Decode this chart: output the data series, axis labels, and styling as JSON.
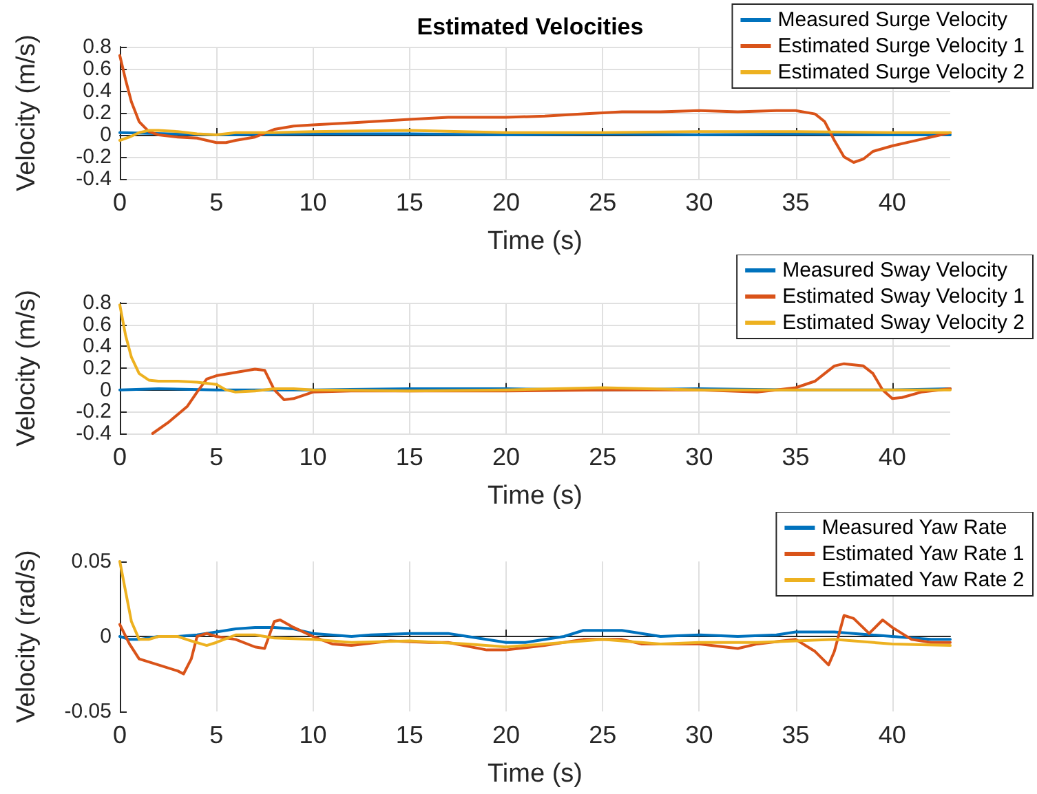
{
  "chart_data": [
    {
      "type": "line",
      "title": "Estimated Velocities",
      "xlabel": "Time (s)",
      "ylabel": "Velocity (m/s)",
      "xlim": [
        0,
        43
      ],
      "xticks": [
        0,
        5,
        10,
        15,
        20,
        25,
        30,
        35,
        40
      ],
      "ylim": [
        -0.4,
        0.8
      ],
      "yticks": [
        -0.4,
        -0.2,
        0,
        0.2,
        0.4,
        0.6,
        0.8
      ],
      "grid": true,
      "legend": "top right",
      "marker": "none",
      "line_style": "solid",
      "series": [
        {
          "name": "Measured Surge Velocity",
          "color": "#0072bd",
          "x": [
            0,
            5,
            10,
            15,
            20,
            25,
            30,
            35,
            40,
            43
          ],
          "values": [
            0.02,
            0.0,
            0.01,
            0.01,
            0.0,
            0.01,
            0.0,
            0.01,
            0.0,
            0.0
          ]
        },
        {
          "name": "Estimated Surge Velocity 1",
          "color": "#d95319",
          "x": [
            0,
            0.3,
            0.6,
            1,
            1.5,
            2,
            3,
            4,
            5,
            5.5,
            6,
            7,
            8,
            9,
            10,
            12,
            15,
            17,
            18,
            20,
            22,
            24,
            26,
            28,
            30,
            32,
            34,
            35,
            36,
            36.5,
            37,
            37.5,
            38,
            38.5,
            39,
            40,
            41,
            42,
            43
          ],
          "values": [
            0.72,
            0.5,
            0.3,
            0.12,
            0.03,
            0.0,
            -0.02,
            -0.03,
            -0.07,
            -0.07,
            -0.05,
            -0.02,
            0.05,
            0.08,
            0.09,
            0.11,
            0.14,
            0.16,
            0.16,
            0.16,
            0.17,
            0.19,
            0.21,
            0.21,
            0.22,
            0.21,
            0.22,
            0.22,
            0.19,
            0.12,
            -0.05,
            -0.2,
            -0.25,
            -0.22,
            -0.15,
            -0.1,
            -0.06,
            -0.02,
            0.02
          ]
        },
        {
          "name": "Estimated Surge Velocity 2",
          "color": "#edb120",
          "x": [
            0,
            0.5,
            1,
            1.5,
            2,
            3,
            4,
            5,
            6,
            8,
            10,
            15,
            20,
            25,
            30,
            35,
            40,
            43
          ],
          "values": [
            -0.05,
            -0.02,
            0.02,
            0.04,
            0.04,
            0.03,
            0.01,
            0.0,
            0.02,
            0.02,
            0.03,
            0.04,
            0.02,
            0.02,
            0.03,
            0.03,
            0.02,
            0.02
          ]
        }
      ]
    },
    {
      "type": "line",
      "xlabel": "Time (s)",
      "ylabel": "Velocity (m/s)",
      "xlim": [
        0,
        43
      ],
      "xticks": [
        0,
        5,
        10,
        15,
        20,
        25,
        30,
        35,
        40
      ],
      "ylim": [
        -0.4,
        0.8
      ],
      "yticks": [
        -0.4,
        -0.2,
        0,
        0.2,
        0.4,
        0.6,
        0.8
      ],
      "grid": true,
      "legend": "top right",
      "marker": "none",
      "line_style": "solid",
      "series": [
        {
          "name": "Measured Sway Velocity",
          "color": "#0072bd",
          "x": [
            0,
            2,
            5,
            10,
            15,
            20,
            25,
            30,
            35,
            40,
            43
          ],
          "values": [
            0.0,
            0.01,
            0.0,
            0.0,
            0.01,
            0.01,
            0.0,
            0.01,
            0.0,
            0.0,
            0.01
          ]
        },
        {
          "name": "Estimated Sway Velocity 1",
          "color": "#d95319",
          "x": [
            1.7,
            2.5,
            3.5,
            4,
            4.5,
            5,
            6,
            7,
            7.5,
            8,
            8.5,
            9,
            10,
            12,
            15,
            20,
            25,
            30,
            33,
            34,
            35,
            36,
            36.5,
            37,
            37.5,
            38.5,
            39,
            39.5,
            40,
            40.5,
            41.5,
            43
          ],
          "values": [
            -0.4,
            -0.3,
            -0.15,
            -0.02,
            0.1,
            0.13,
            0.16,
            0.19,
            0.18,
            0.0,
            -0.09,
            -0.08,
            -0.02,
            -0.01,
            -0.01,
            -0.01,
            0.0,
            0.0,
            -0.02,
            0.0,
            0.02,
            0.08,
            0.15,
            0.22,
            0.24,
            0.22,
            0.15,
            0.0,
            -0.08,
            -0.07,
            -0.02,
            0.01
          ]
        },
        {
          "name": "Estimated Sway Velocity 2",
          "color": "#edb120",
          "x": [
            0,
            0.3,
            0.6,
            1,
            1.5,
            2,
            3,
            4,
            5,
            5.5,
            6,
            7,
            8,
            9,
            10,
            15,
            20,
            25,
            30,
            35,
            40,
            43
          ],
          "values": [
            0.78,
            0.5,
            0.3,
            0.15,
            0.09,
            0.08,
            0.08,
            0.07,
            0.05,
            0.0,
            -0.02,
            -0.01,
            0.01,
            0.01,
            0.0,
            -0.01,
            0.0,
            0.02,
            0.0,
            0.0,
            0.0,
            0.0
          ]
        }
      ]
    },
    {
      "type": "line",
      "xlabel": "Time (s)",
      "ylabel": "Velocity (rad/s)",
      "xlim": [
        0,
        43
      ],
      "xticks": [
        0,
        5,
        10,
        15,
        20,
        25,
        30,
        35,
        40
      ],
      "ylim": [
        -0.05,
        0.05
      ],
      "yticks": [
        -0.05,
        0,
        0.05
      ],
      "grid": "x",
      "legend": "top right",
      "marker": "none",
      "line_style": "solid",
      "series": [
        {
          "name": "Measured Yaw Rate",
          "color": "#0072bd",
          "x": [
            0,
            0.5,
            1,
            2,
            3,
            4,
            5,
            6,
            7,
            8,
            9,
            10,
            12,
            13,
            15,
            17,
            18,
            20,
            21,
            23,
            24,
            26,
            28,
            30,
            32,
            34,
            35,
            37,
            38,
            40,
            42,
            43
          ],
          "values": [
            0.0,
            -0.002,
            -0.002,
            0.0,
            0.0,
            0.001,
            0.003,
            0.005,
            0.006,
            0.006,
            0.005,
            0.002,
            0.0,
            0.001,
            0.002,
            0.002,
            0.0,
            -0.004,
            -0.004,
            0.0,
            0.004,
            0.004,
            0.0,
            0.001,
            0.0,
            0.001,
            0.003,
            0.003,
            0.002,
            0.0,
            -0.002,
            -0.002
          ]
        },
        {
          "name": "Estimated Yaw Rate 1",
          "color": "#d95319",
          "x": [
            0,
            0.5,
            1,
            2,
            3,
            3.3,
            3.7,
            4,
            4.5,
            5,
            6,
            7,
            7.5,
            8,
            8.3,
            9,
            10,
            11,
            12,
            14,
            16,
            17,
            19,
            20,
            22,
            24,
            26,
            27,
            30,
            32,
            33,
            35,
            36,
            36.7,
            37,
            37.5,
            38,
            38.8,
            39.5,
            40,
            41,
            42,
            43
          ],
          "values": [
            0.008,
            -0.005,
            -0.015,
            -0.019,
            -0.023,
            -0.025,
            -0.015,
            0.0,
            0.002,
            0.0,
            -0.002,
            -0.007,
            -0.008,
            0.01,
            0.011,
            0.006,
            0.0,
            -0.005,
            -0.006,
            -0.003,
            -0.004,
            -0.004,
            -0.009,
            -0.009,
            -0.006,
            -0.002,
            -0.002,
            -0.005,
            -0.005,
            -0.008,
            -0.005,
            -0.002,
            -0.01,
            -0.019,
            -0.01,
            0.014,
            0.012,
            0.002,
            0.011,
            0.006,
            -0.002,
            -0.004,
            -0.004
          ]
        },
        {
          "name": "Estimated Yaw Rate 2",
          "color": "#edb120",
          "x": [
            0,
            0.3,
            0.6,
            1,
            1.5,
            2,
            3,
            3.7,
            4.5,
            5,
            6,
            7,
            8,
            10,
            12,
            15,
            18,
            20,
            22,
            25,
            28,
            30,
            33,
            35,
            37,
            38,
            40,
            43
          ],
          "values": [
            0.05,
            0.03,
            0.01,
            -0.002,
            -0.002,
            0.0,
            0.0,
            -0.003,
            -0.006,
            -0.004,
            0.001,
            0.001,
            -0.001,
            -0.002,
            -0.004,
            -0.003,
            -0.005,
            -0.007,
            -0.005,
            -0.002,
            -0.005,
            -0.004,
            -0.004,
            -0.003,
            -0.002,
            -0.003,
            -0.005,
            -0.006
          ]
        }
      ]
    }
  ]
}
